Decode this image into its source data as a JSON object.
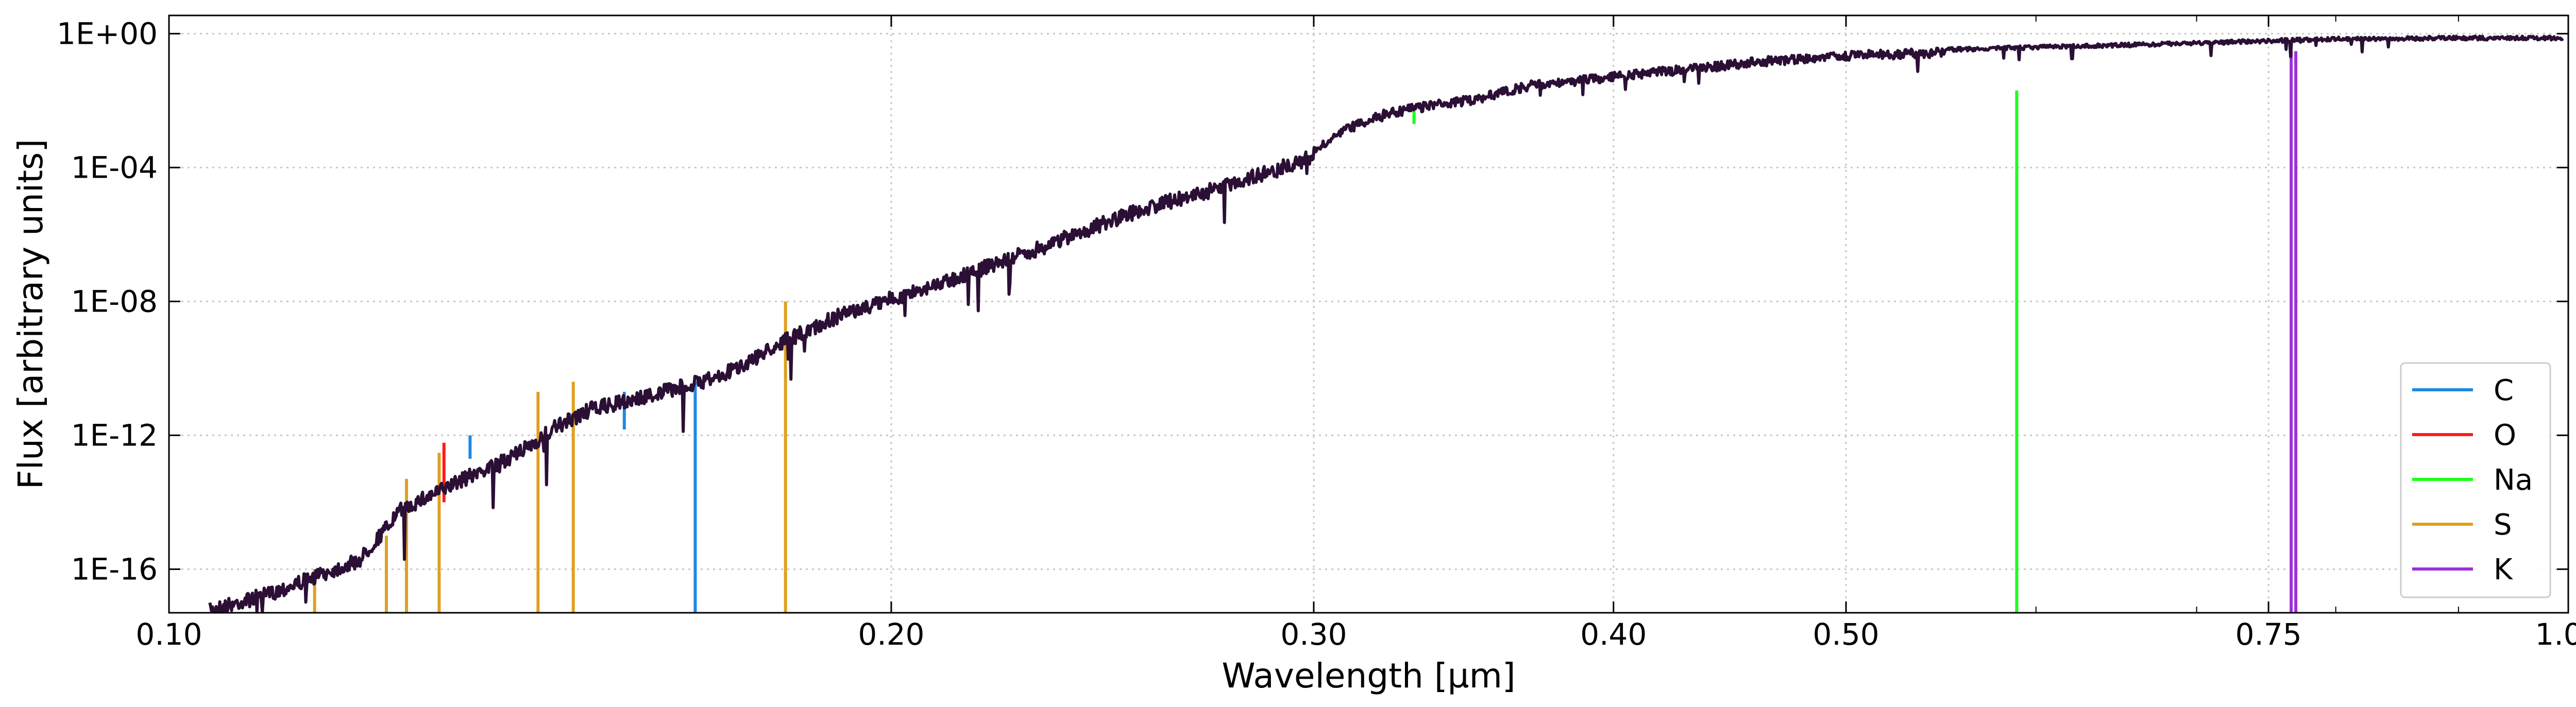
{
  "chart_data": {
    "type": "line",
    "title": "",
    "xlabel": "Wavelength [µm]",
    "ylabel": "Flux [arbitrary units]",
    "xscale": "log",
    "yscale": "log",
    "xlim": [
      0.1,
      1.0
    ],
    "ylim": [
      5e-18,
      3.5
    ],
    "grid": true,
    "legend_position": "bottom-right",
    "x_ticks": [
      {
        "value": 0.1,
        "label": "0.10"
      },
      {
        "value": 0.2,
        "label": "0.20"
      },
      {
        "value": 0.3,
        "label": "0.30"
      },
      {
        "value": 0.4,
        "label": "0.40"
      },
      {
        "value": 0.5,
        "label": "0.50"
      },
      {
        "value": 0.75,
        "label": "0.75"
      },
      {
        "value": 1.0,
        "label": "1.00"
      }
    ],
    "y_ticks": [
      {
        "value": 1e-16,
        "label": "1E-16"
      },
      {
        "value": 1e-12,
        "label": "1E-12"
      },
      {
        "value": 1e-08,
        "label": "1E-08"
      },
      {
        "value": 0.0001,
        "label": "1E-04"
      },
      {
        "value": 1,
        "label": "1E+00"
      }
    ],
    "spectrum": {
      "name": "",
      "color": "#2b0f35",
      "x": [
        0.104,
        0.11,
        0.115,
        0.12,
        0.125,
        0.13,
        0.135,
        0.14,
        0.145,
        0.15,
        0.16,
        0.17,
        0.18,
        0.19,
        0.2,
        0.21,
        0.22,
        0.23,
        0.24,
        0.25,
        0.26,
        0.27,
        0.28,
        0.29,
        0.3,
        0.31,
        0.32,
        0.33,
        0.35,
        0.37,
        0.4,
        0.43,
        0.46,
        0.5,
        0.55,
        0.6,
        0.65,
        0.7,
        0.75,
        0.8,
        0.85,
        0.9,
        0.95,
        1.0
      ],
      "y": [
        1e-17,
        3e-17,
        1e-16,
        3e-16,
        1e-14,
        4e-14,
        1.5e-13,
        5e-13,
        3e-12,
        1e-11,
        3e-11,
        1e-10,
        1e-09,
        6e-09,
        2e-08,
        6e-08,
        2e-07,
        6e-07,
        2e-06,
        6e-06,
        1.5e-05,
        3e-05,
        7e-05,
        0.00015,
        0.0004,
        0.002,
        0.005,
        0.008,
        0.015,
        0.04,
        0.07,
        0.12,
        0.2,
        0.3,
        0.38,
        0.45,
        0.52,
        0.6,
        0.7,
        0.8,
        0.82,
        0.85,
        0.85,
        0.85
      ]
    },
    "lines": [
      {
        "element": "C",
        "x": 0.1548,
        "y_top": 2e-11,
        "y_bottom": 1.5e-12
      },
      {
        "element": "C",
        "x": 0.1657,
        "y_top": 4e-11,
        "y_bottom": 5e-18
      },
      {
        "element": "C",
        "x": 0.1335,
        "y_top": 1e-12,
        "y_bottom": 2e-13
      },
      {
        "element": "O",
        "x": 0.1302,
        "y_top": 6e-13,
        "y_bottom": 1e-14
      },
      {
        "element": "Na",
        "x": 0.589,
        "y_top": 0.02,
        "y_bottom": 5e-18
      },
      {
        "element": "Na",
        "x": 0.3303,
        "y_top": 0.005,
        "y_bottom": 0.002
      },
      {
        "element": "S",
        "x": 0.1256,
        "y_top": 5e-14,
        "y_bottom": 5e-18
      },
      {
        "element": "S",
        "x": 0.1296,
        "y_top": 3e-13,
        "y_bottom": 5e-18
      },
      {
        "element": "S",
        "x": 0.1425,
        "y_top": 2e-11,
        "y_bottom": 5e-18
      },
      {
        "element": "S",
        "x": 0.1474,
        "y_top": 4e-11,
        "y_bottom": 5e-18
      },
      {
        "element": "S",
        "x": 0.1807,
        "y_top": 1e-08,
        "y_bottom": 5e-18
      },
      {
        "element": "S",
        "x": 0.115,
        "y_top": 1e-16,
        "y_bottom": 5e-18
      },
      {
        "element": "S",
        "x": 0.1232,
        "y_top": 1e-15,
        "y_bottom": 5e-18
      },
      {
        "element": "K",
        "x": 0.7665,
        "y_top": 0.3,
        "y_bottom": 5e-18
      },
      {
        "element": "K",
        "x": 0.7699,
        "y_top": 0.3,
        "y_bottom": 5e-18
      }
    ],
    "legend": [
      {
        "label": "C",
        "color": "#1e88e5"
      },
      {
        "label": "O",
        "color": "#ff1a1a"
      },
      {
        "label": "Na",
        "color": "#1aff1a"
      },
      {
        "label": "S",
        "color": "#e0a020"
      },
      {
        "label": "K",
        "color": "#9b30d9"
      }
    ]
  }
}
